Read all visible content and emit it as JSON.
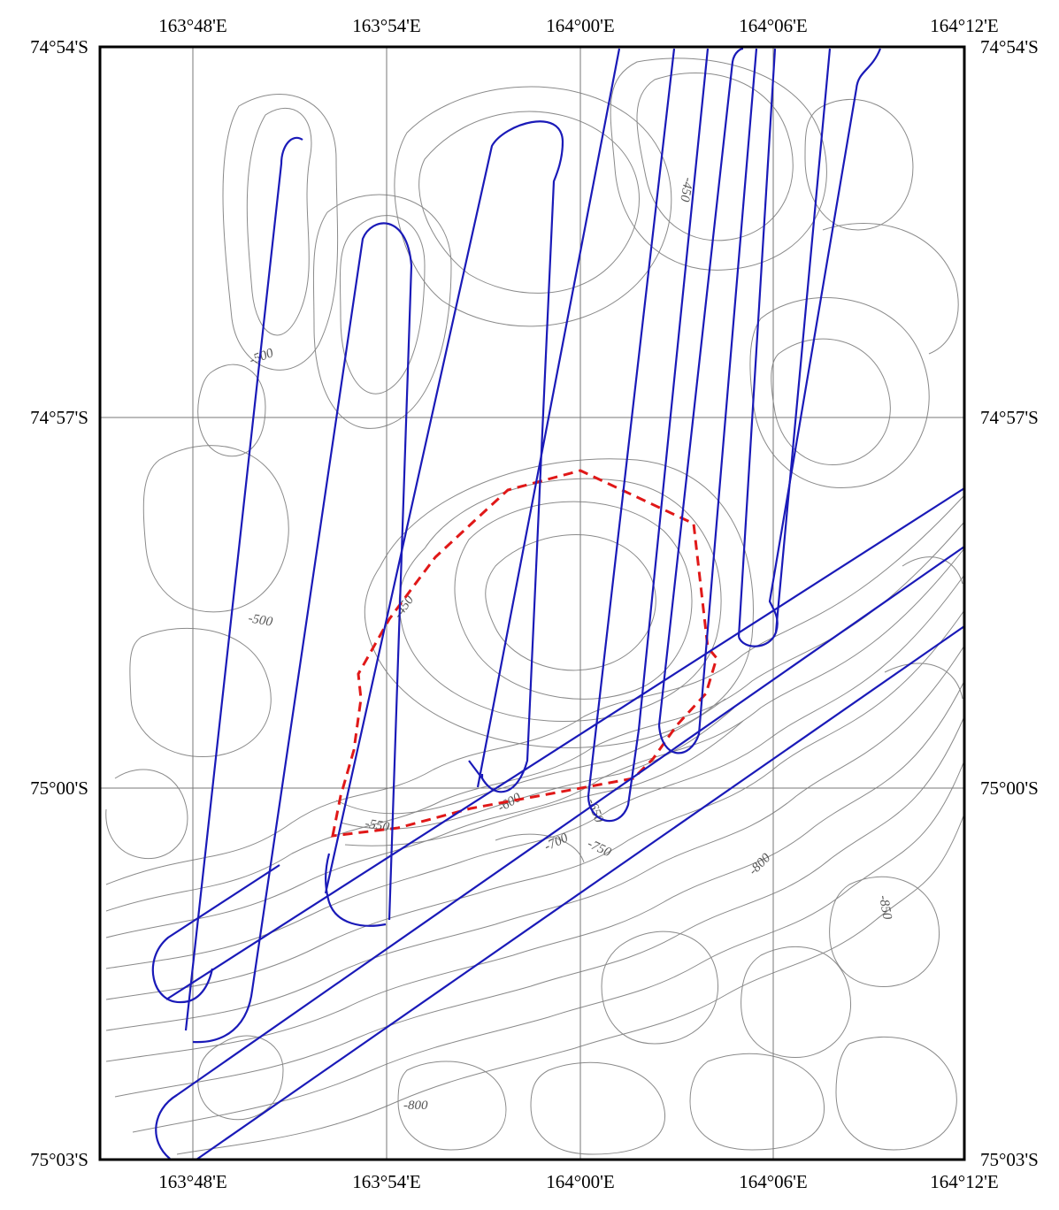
{
  "map": {
    "lon_ticks_top": [
      "163°48'E",
      "163°54'E",
      "164°00'E",
      "164°06'E",
      "164°12'E"
    ],
    "lon_ticks_bottom": [
      "163°48'E",
      "163°54'E",
      "164°00'E",
      "164°06'E",
      "164°12'E"
    ],
    "lat_ticks_left": [
      "74°54'S",
      "74°57'S",
      "75°00'S",
      "75°03'S"
    ],
    "lat_ticks_right": [
      "74°54'S",
      "74°57'S",
      "75°00'S",
      "75°03'S"
    ],
    "contour_labels": [
      "-500",
      "-500",
      "-450",
      "-550",
      "-600",
      "-650",
      "-700",
      "-750",
      "-800",
      "-850",
      "-800",
      "-450"
    ],
    "colors": {
      "survey_track": "#1a1ab8",
      "boundary": "#e01818",
      "contour": "#8a8a8a",
      "grid": "#777777",
      "frame": "#000000"
    }
  }
}
